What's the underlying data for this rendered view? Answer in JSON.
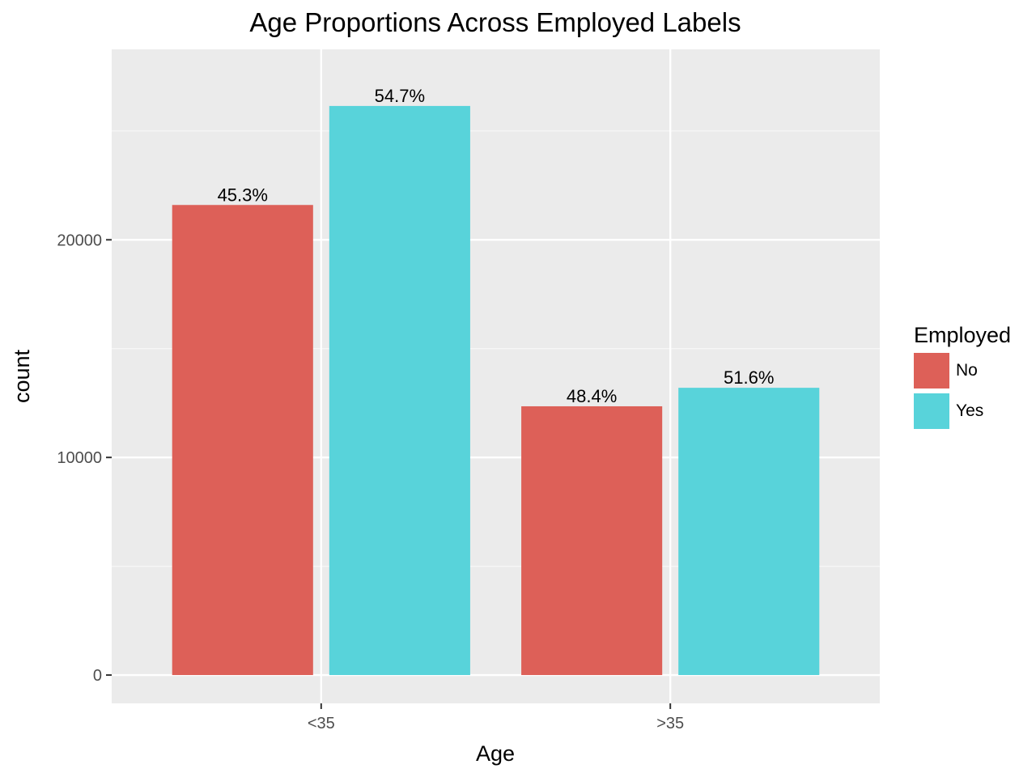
{
  "chart_data": {
    "type": "bar",
    "title": "Age Proportions Across Employed Labels",
    "xlabel": "Age",
    "ylabel": "count",
    "categories": [
      "<35",
      ">35"
    ],
    "series": [
      {
        "name": "No",
        "color": "#dd6058",
        "values": [
          21600,
          12350
        ],
        "labels": [
          "45.3%",
          "48.4%"
        ]
      },
      {
        "name": "Yes",
        "color": "#58d3da",
        "values": [
          26150,
          13200
        ],
        "labels": [
          "54.7%",
          "51.6%"
        ]
      }
    ],
    "ylim": [
      -1300,
      28750
    ],
    "yticks": [
      0,
      10000,
      20000
    ],
    "ytick_labels": [
      "0",
      "10000",
      "20000"
    ],
    "grid": true,
    "legend": {
      "title": "Employed",
      "position": "right"
    }
  }
}
